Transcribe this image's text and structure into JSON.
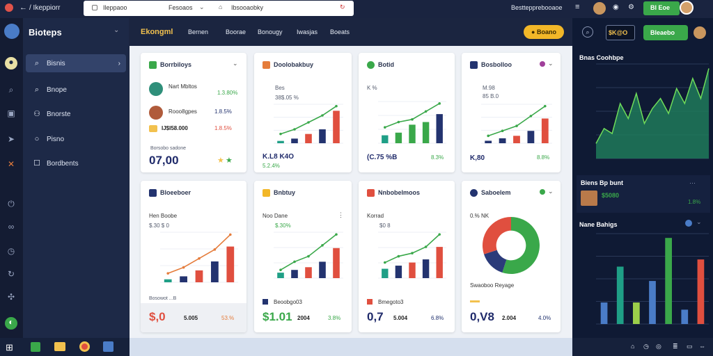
{
  "titlebar": {
    "back": "←",
    "title": "/ Ikeppiorr"
  },
  "address_tabs": [
    {
      "label": "Ileppaoo"
    },
    {
      "label": "Fesoaos"
    },
    {
      "label": "Ibsooaobky"
    }
  ],
  "top_right": {
    "user_label": "Besttepprebooaoe",
    "btn_label": "Bl Eoe"
  },
  "sidebar": {
    "brand": "Bioteps",
    "items": [
      {
        "label": "Bisnis"
      },
      {
        "label": "Bnope"
      },
      {
        "label": "Bnorste"
      },
      {
        "label": "Pisno"
      },
      {
        "label": "Bordbents"
      }
    ]
  },
  "header": {
    "brand": "Ekongml",
    "tabs": [
      {
        "label": "Bernen"
      },
      {
        "label": "Boorae"
      },
      {
        "label": "Bonougy"
      },
      {
        "label": "Iwasjas"
      },
      {
        "label": "Boeats"
      }
    ],
    "action": "Boano"
  },
  "right_header": {
    "value": "$K@O",
    "button": "Bleaebo"
  },
  "cards": {
    "c1": {
      "title": "Borrbiloys",
      "rows": [
        {
          "name": "Nart Mbltos",
          "pct": "1.3.80%"
        },
        {
          "name": "Rooo8gpes",
          "pct": "1.8.5%"
        },
        {
          "name": "IJ$I58.000",
          "pct": "1.8.5%"
        }
      ],
      "foot_label": "Borsobo sadone",
      "big": "07,00",
      "foot_pct": "..."
    },
    "c2": {
      "title": "Doolobakbuy",
      "l1": "Bes",
      "l2": "38$.05 %",
      "big": "K.L8 K4O",
      "pct": "5.2.4%"
    },
    "c3": {
      "title": "Botid",
      "l1": "K %",
      "big": "(C.75 %B",
      "pct": "8.3%"
    },
    "c4": {
      "title": "Bosbolloo",
      "l1": "M.98",
      "l2": "85 B.0",
      "big": "K,80",
      "pct": "8.8%"
    },
    "c5": {
      "title": "Bloeeboer",
      "l1": "Hen Boobe",
      "l2": "$.30 $ 0",
      "foot_label": "Bosowot  ...B",
      "big": "$,0",
      "pct": "53.%",
      "big_b": "5.005"
    },
    "c6": {
      "title": "Bnbtuy",
      "l1": "Noo Dane",
      "l2": "$.30%",
      "foot_label": "Beoobgo03",
      "big": "$1.01",
      "pct": "3.8%",
      "big_b": "2004"
    },
    "c7": {
      "title": "Nnbobelmoos",
      "l1": "Korrad",
      "l2": "$0 8",
      "foot_label": "Bmegoto3",
      "big": "0,7",
      "pct": "6.8%",
      "big_b": "5.004"
    },
    "c8": {
      "title": "Saboelem",
      "l1": "0.% NK",
      "foot_label": "Swaoboo Reyage",
      "big": "0,V8",
      "pct": "4.0%",
      "big_b": "2.004"
    }
  },
  "right": {
    "chart1_title": "Bnas Coohbpe",
    "stat_title": "Biens Bp bunt",
    "stat_value": "$5080",
    "stat_pct": "1.8%",
    "chart2_title": "Nane Bahigs"
  },
  "colors": {
    "green": "#3aa84a",
    "blue": "#23336f",
    "red": "#e04f3f",
    "orange": "#e57c3b",
    "teal": "#1f9f86"
  },
  "chart_data": [
    {
      "type": "bar",
      "title": "Doolobakbuy",
      "values": [
        1,
        2,
        4,
        6,
        14
      ],
      "line": [
        4,
        6,
        9,
        12,
        16
      ]
    },
    {
      "type": "bar",
      "title": "Botid",
      "values": [
        3,
        4,
        7,
        8,
        11
      ],
      "line": [
        6,
        8,
        9,
        12,
        15
      ]
    },
    {
      "type": "bar",
      "title": "Bosbolloo",
      "values": [
        1,
        2,
        3,
        5,
        10
      ],
      "line": [
        3,
        5,
        7,
        11,
        15
      ]
    },
    {
      "type": "bar",
      "title": "Bloeeboer",
      "values": [
        1,
        2,
        4,
        7,
        12
      ],
      "line": [
        3,
        5,
        8,
        11,
        16
      ]
    },
    {
      "type": "bar",
      "title": "Bnbtuy",
      "values": [
        2,
        3,
        4,
        6,
        11
      ],
      "line": [
        3,
        6,
        8,
        12,
        16
      ]
    },
    {
      "type": "bar",
      "title": "Nnbobelmoos",
      "values": [
        3,
        4,
        5,
        6,
        10
      ],
      "line": [
        5,
        7,
        8,
        10,
        14
      ]
    },
    {
      "type": "pie",
      "title": "Saboelem",
      "values": [
        55,
        15,
        30
      ],
      "colors": [
        "#3aa84a",
        "#2b3b7a",
        "#e04f3f"
      ]
    },
    {
      "type": "area",
      "title": "Bnas Coohbpe",
      "values": [
        3,
        6,
        5,
        11,
        8,
        13,
        7,
        10,
        12,
        9,
        14,
        11,
        16,
        12,
        18
      ]
    },
    {
      "type": "bar",
      "title": "Nane Bahigs",
      "values": [
        3,
        8,
        3,
        6,
        12,
        2,
        9
      ]
    }
  ]
}
